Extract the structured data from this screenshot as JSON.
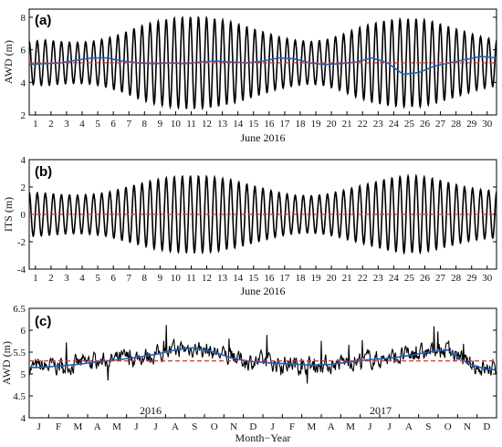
{
  "chart_data": [
    {
      "panel": "(a)",
      "type": "line",
      "ylabel": "AWD (m)",
      "xlabel": "June 2016",
      "ylim": [
        2,
        8.5
      ],
      "yticks": [
        2,
        4,
        6,
        8
      ],
      "xlim": [
        0.6,
        30.6
      ],
      "x_tick_labels": [
        "1",
        "2",
        "3",
        "4",
        "5",
        "6",
        "7",
        "8",
        "9",
        "10",
        "11",
        "12",
        "13",
        "14",
        "15",
        "16",
        "17",
        "18",
        "19",
        "20",
        "21",
        "22",
        "23",
        "24",
        "25",
        "26",
        "27",
        "28",
        "29",
        "30"
      ],
      "series": [
        {
          "role": "water-depth",
          "color": "#000000",
          "mean": 5.2,
          "period_days": 0.5175,
          "amplitude_days": [
            1.3,
            1.4,
            1.3,
            1.25,
            1.3,
            1.5,
            1.8,
            2.2,
            2.5,
            2.7,
            2.8,
            2.8,
            2.7,
            2.5,
            2.2,
            1.9,
            1.6,
            1.4,
            1.3,
            1.4,
            1.7,
            2.1,
            2.4,
            2.6,
            2.7,
            2.7,
            2.5,
            2.2,
            1.9,
            1.6,
            1.4
          ]
        },
        {
          "role": "smoothed",
          "color": "#1f5fbf",
          "values": [
            5.1,
            5.15,
            5.2,
            5.35,
            5.5,
            5.5,
            5.3,
            5.2,
            5.15,
            5.2,
            5.15,
            5.25,
            5.3,
            5.25,
            5.2,
            5.3,
            5.5,
            5.45,
            5.2,
            5.1,
            5.15,
            5.25,
            5.5,
            5.2,
            4.5,
            4.6,
            5.0,
            5.2,
            5.4,
            5.6,
            5.5
          ]
        },
        {
          "role": "mean",
          "color": "#e03030",
          "value": 5.2,
          "style": "dashed"
        }
      ]
    },
    {
      "panel": "(b)",
      "type": "line",
      "ylabel": "ITS (m)",
      "xlabel": "June 2016",
      "ylim": [
        -4,
        4
      ],
      "yticks": [
        -4,
        -2,
        0,
        2,
        4
      ],
      "xlim": [
        0.6,
        30.6
      ],
      "x_tick_labels": [
        "1",
        "2",
        "3",
        "4",
        "5",
        "6",
        "7",
        "8",
        "9",
        "10",
        "11",
        "12",
        "13",
        "14",
        "15",
        "16",
        "17",
        "18",
        "19",
        "20",
        "21",
        "22",
        "23",
        "24",
        "25",
        "26",
        "27",
        "28",
        "29",
        "30"
      ],
      "series": [
        {
          "role": "tide",
          "color": "#000000",
          "mean": 0,
          "period_days": 0.5175,
          "amplitude_days": [
            1.6,
            1.55,
            1.45,
            1.4,
            1.45,
            1.6,
            1.9,
            2.2,
            2.5,
            2.7,
            2.8,
            2.8,
            2.7,
            2.5,
            2.2,
            1.9,
            1.6,
            1.4,
            1.35,
            1.45,
            1.7,
            2.0,
            2.3,
            2.6,
            2.8,
            2.8,
            2.6,
            2.3,
            2.0,
            1.8,
            1.7
          ]
        },
        {
          "role": "zero-line",
          "color": "#e03030",
          "value": 0,
          "style": "dashed"
        }
      ]
    },
    {
      "panel": "(c)",
      "type": "line",
      "ylabel": "AWD (m)",
      "xlabel": "Month−Year",
      "ylim": [
        4,
        6.5
      ],
      "yticks": [
        4,
        4.5,
        5,
        5.5,
        6,
        6.5
      ],
      "month_labels": [
        "J",
        "F",
        "M",
        "A",
        "M",
        "J",
        "J",
        "A",
        "S",
        "O",
        "N",
        "D",
        "J",
        "F",
        "M",
        "A",
        "M",
        "J",
        "J",
        "A",
        "S",
        "O",
        "N",
        "D"
      ],
      "year_labels": [
        "2016",
        "2017"
      ],
      "mean_level": 5.3,
      "trend_monthly": [
        5.15,
        5.18,
        5.22,
        5.28,
        5.32,
        5.38,
        5.45,
        5.55,
        5.6,
        5.5,
        5.35,
        5.28,
        5.25,
        5.23,
        5.2,
        5.22,
        5.28,
        5.33,
        5.36,
        5.42,
        5.5,
        5.55,
        5.25,
        5.1
      ],
      "series_colors": {
        "daily": "#000000",
        "smoothed": "#1f5fbf",
        "mean": "#e03030"
      }
    }
  ]
}
